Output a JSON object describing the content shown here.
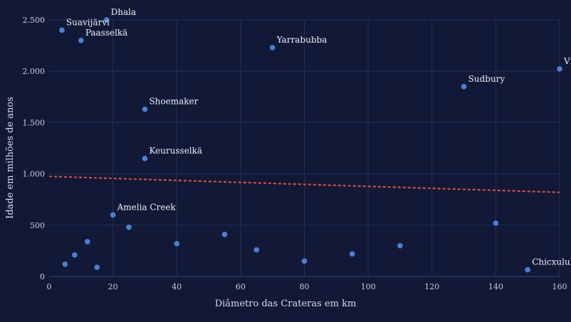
{
  "chart_data": {
    "type": "scatter",
    "title": "",
    "xlabel": "Diâmetro das Crateras em km",
    "ylabel": "Idade em milhões de anos",
    "xlim": [
      0,
      160
    ],
    "ylim": [
      0,
      2500
    ],
    "x_ticks": [
      {
        "value": 0,
        "label": "0"
      },
      {
        "value": 20,
        "label": "20"
      },
      {
        "value": 40,
        "label": "40"
      },
      {
        "value": 60,
        "label": "60"
      },
      {
        "value": 80,
        "label": "80"
      },
      {
        "value": 100,
        "label": "100"
      },
      {
        "value": 120,
        "label": "120"
      },
      {
        "value": 140,
        "label": "140"
      },
      {
        "value": 160,
        "label": "160"
      }
    ],
    "y_ticks": [
      {
        "value": 0,
        "label": "0"
      },
      {
        "value": 500,
        "label": "500"
      },
      {
        "value": 1000,
        "label": "1.000"
      },
      {
        "value": 1500,
        "label": "1.500"
      },
      {
        "value": 2000,
        "label": "2.000"
      },
      {
        "value": 2500,
        "label": "2.500"
      }
    ],
    "grid": true,
    "legend": "none",
    "points": [
      {
        "x": 4,
        "y": 2400,
        "label": "Suavijärvi"
      },
      {
        "x": 18,
        "y": 2500,
        "label": "Dhala"
      },
      {
        "x": 10,
        "y": 2300,
        "label": "Paasselkä"
      },
      {
        "x": 70,
        "y": 2230,
        "label": "Yarrabubba"
      },
      {
        "x": 160,
        "y": 2023,
        "label": "Vr"
      },
      {
        "x": 130,
        "y": 1850,
        "label": "Sudbury"
      },
      {
        "x": 30,
        "y": 1630,
        "label": "Shoemaker"
      },
      {
        "x": 30,
        "y": 1150,
        "label": "Keurusselkä"
      },
      {
        "x": 20,
        "y": 600,
        "label": "Amelia Creek"
      },
      {
        "x": 25,
        "y": 480,
        "label": ""
      },
      {
        "x": 5,
        "y": 120,
        "label": ""
      },
      {
        "x": 8,
        "y": 210,
        "label": ""
      },
      {
        "x": 12,
        "y": 340,
        "label": ""
      },
      {
        "x": 15,
        "y": 90,
        "label": ""
      },
      {
        "x": 40,
        "y": 320,
        "label": ""
      },
      {
        "x": 55,
        "y": 410,
        "label": ""
      },
      {
        "x": 65,
        "y": 260,
        "label": ""
      },
      {
        "x": 80,
        "y": 150,
        "label": ""
      },
      {
        "x": 95,
        "y": 220,
        "label": ""
      },
      {
        "x": 110,
        "y": 300,
        "label": ""
      },
      {
        "x": 140,
        "y": 520,
        "label": ""
      },
      {
        "x": 150,
        "y": 66,
        "label": "Chicxulub"
      }
    ],
    "trendline": {
      "x": [
        0,
        160
      ],
      "y": [
        975,
        820
      ],
      "style": "dashed"
    },
    "colors": {
      "background": "#111936",
      "point": "#4a7fd6",
      "trendline": "#e0483c",
      "grid": "#233056",
      "text": "#d6dced"
    }
  }
}
